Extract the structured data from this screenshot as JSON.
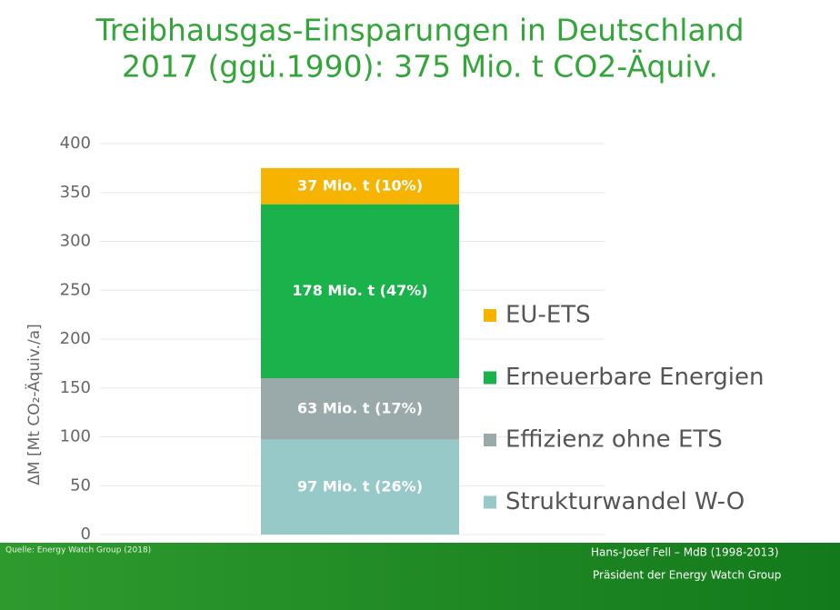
{
  "chart_data": {
    "type": "stacked_bar",
    "title": [
      "Treibhausgas-Einsparungen in Deutschland",
      "2017 (ggü.1990): 375 Mio. t CO2-Äquiv."
    ],
    "ylabel": "ΔM  [Mt CO₂-Äquiv./a]",
    "categories": [
      null
    ],
    "series": [
      {
        "name": "Strukturwandel W-O",
        "color": "#98c9c9",
        "values": [
          97
        ],
        "value_labels": [
          "97 Mio. t (26%)"
        ]
      },
      {
        "name": "Effizienz ohne ETS",
        "color": "#9aa9a9",
        "values": [
          63
        ],
        "value_labels": [
          "63 Mio. t (17%)"
        ]
      },
      {
        "name": "Erneuerbare Energien",
        "color": "#19b24b",
        "values": [
          178
        ],
        "value_labels": [
          "178 Mio. t (47%)"
        ]
      },
      {
        "name": "EU-ETS",
        "color": "#f6b400",
        "values": [
          37
        ],
        "value_labels": [
          "37 Mio. t (10%)"
        ]
      }
    ],
    "ylim": [
      0,
      400
    ],
    "yticks": [
      0,
      50,
      100,
      150,
      200,
      250,
      300,
      350,
      400
    ],
    "grid": true,
    "legend": "right"
  },
  "footer": {
    "source": "Quelle: Energy Watch Group (2018)",
    "lines": [
      "Hans-Josef Fell – MdB (1998-2013)",
      "Präsident der Energy Watch Group"
    ]
  }
}
